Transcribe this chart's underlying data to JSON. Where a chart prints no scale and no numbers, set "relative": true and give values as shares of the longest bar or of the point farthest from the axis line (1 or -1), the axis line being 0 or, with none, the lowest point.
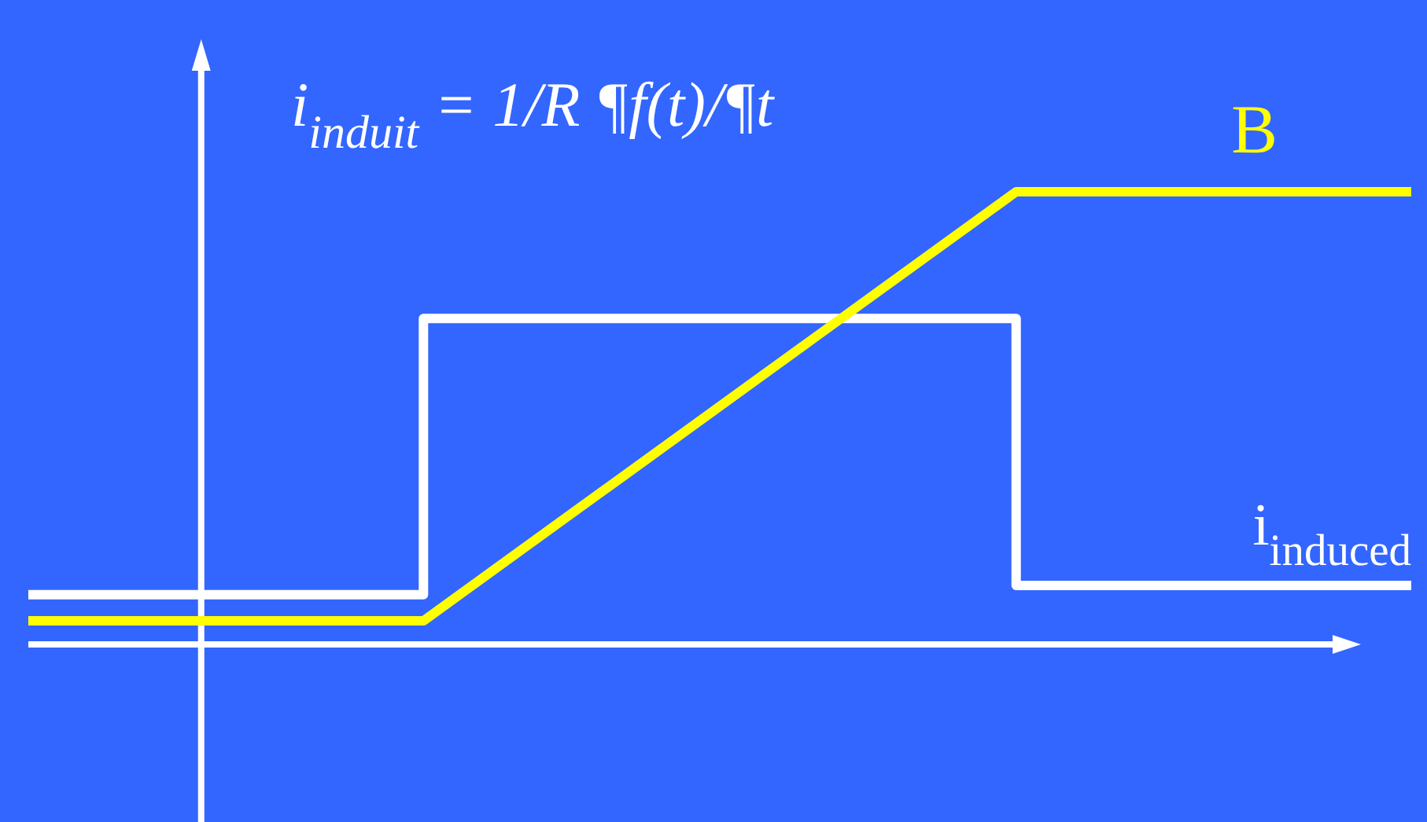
{
  "chart_data": {
    "type": "line",
    "relative": true,
    "legend": false,
    "grid": false,
    "marker": "none",
    "line_style": "solid",
    "categories": [
      null,
      null,
      null,
      null,
      null,
      null,
      null,
      null
    ],
    "annotations": [
      "i$_{induit}$ = 1/R ¶f(t)/¶t"
    ],
    "series": [
      {
        "name": "i$_{induced}$",
        "type": "step",
        "color": "#ffffff",
        "values": [
          0.11,
          0.11,
          0.72,
          0.72,
          0.72,
          0.13,
          0.13,
          0.13
        ]
      },
      {
        "name": "B",
        "type": "line",
        "color": "#ffff00",
        "values": [
          0.052,
          0.052,
          0.052,
          0.368,
          0.684,
          1,
          1,
          1
        ]
      }
    ]
  }
}
